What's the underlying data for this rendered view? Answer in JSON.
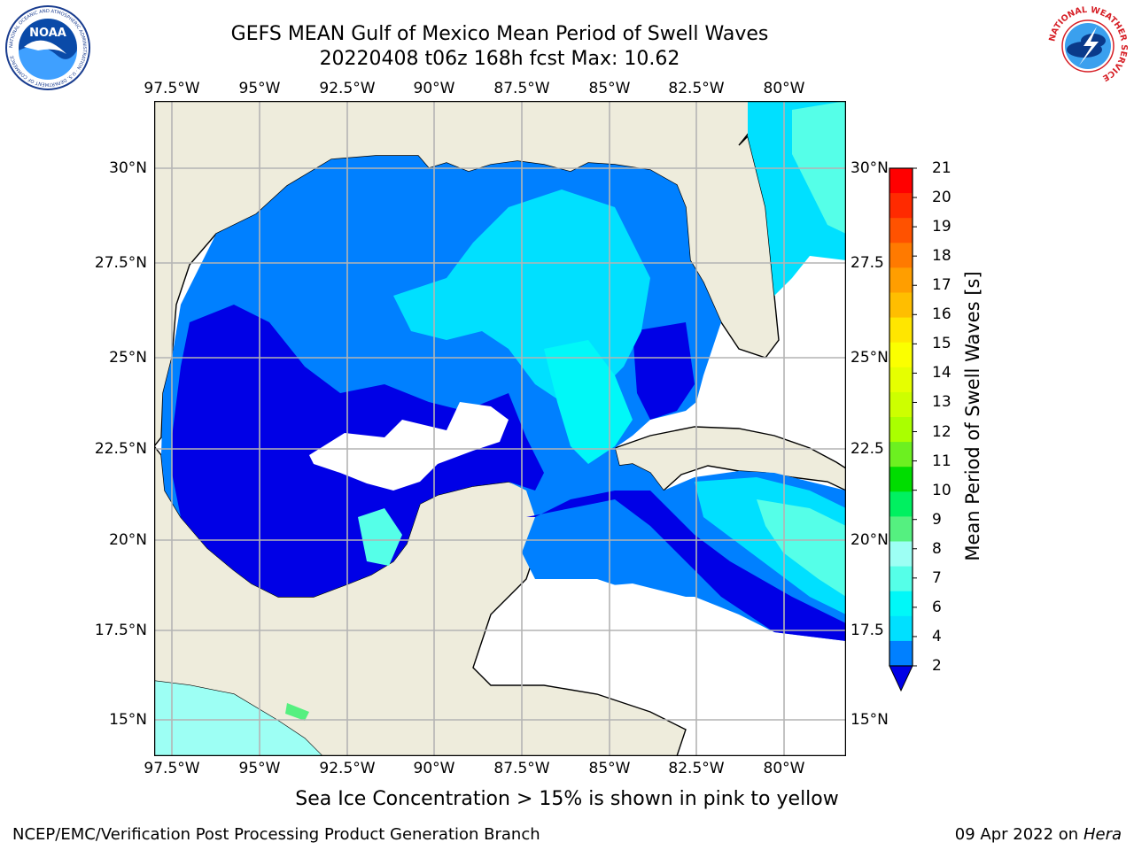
{
  "header": {
    "title_line1": "GEFS MEAN Gulf of Mexico Mean Period of Swell Waves",
    "title_line2": "20220408 t06z 168h fcst   Max: 10.62",
    "left_logo_text": "NOAA",
    "left_logo_ring_text": "NATIONAL OCEANIC AND ATMOSPHERIC ADMINISTRATION · U.S. DEPARTMENT OF COMMERCE",
    "right_logo_ring_text": "NATIONAL WEATHER SERVICE"
  },
  "map": {
    "lon_labels": [
      "97.5°W",
      "95°W",
      "92.5°W",
      "90°W",
      "87.5°W",
      "85°W",
      "82.5°W",
      "80°W"
    ],
    "lat_labels_left": [
      "30°N",
      "27.5°N",
      "25°N",
      "22.5°N",
      "20°N",
      "17.5°N",
      "15°N"
    ],
    "lat_labels_right": [
      "30°N",
      "27.5",
      "25°N",
      "22.5",
      "20°N",
      "17.5",
      "15°N"
    ],
    "colors": {
      "land": "#eeecdc",
      "ocean_no_data": "#ffffff",
      "grid": "#b4b4b4"
    }
  },
  "colorbar": {
    "label": "Mean Period of Swell Waves [s]",
    "ticks": [
      "21",
      "20",
      "19",
      "18",
      "17",
      "16",
      "15",
      "14",
      "13",
      "12",
      "11",
      "10",
      "9",
      "8",
      "7",
      "6",
      "4",
      "2"
    ],
    "bands": [
      "#ff0000",
      "#ff2a00",
      "#ff5200",
      "#ff7a00",
      "#ff9e00",
      "#ffbe00",
      "#ffe600",
      "#fbff00",
      "#e6ff00",
      "#cdff00",
      "#aaff00",
      "#6cf020",
      "#00dd00",
      "#00f060",
      "#55f080",
      "#9dfff4",
      "#55ffe8",
      "#00f8f8",
      "#00e0ff",
      "#0080ff"
    ],
    "under_color": "#0000e6"
  },
  "annotation": "Sea Ice Concentration > 15% is shown in pink to yellow",
  "footer": {
    "left": "NCEP/EMC/Verification Post Processing Product Generation Branch",
    "date": "09 Apr 2022 on",
    "machine": "Hera"
  }
}
